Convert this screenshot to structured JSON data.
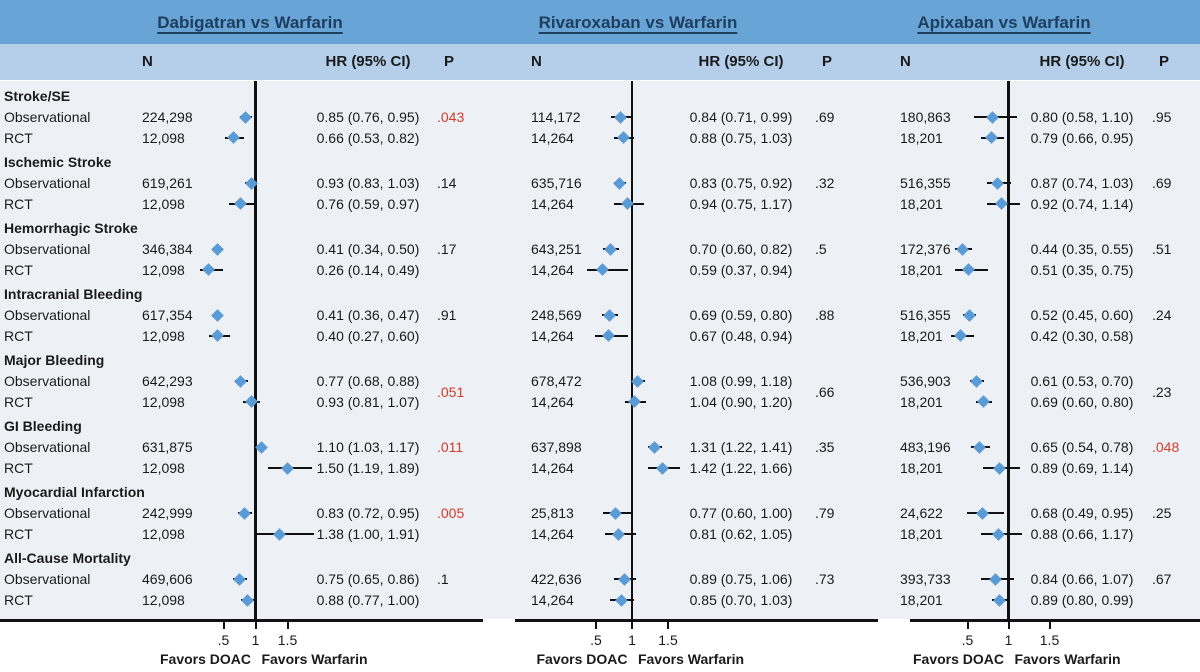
{
  "chart_data": {
    "type": "forest",
    "title": "",
    "x_scale": "linear",
    "xlim": [
      0.05,
      2.0
    ],
    "ref_line": 1,
    "x_ticks": [
      0.5,
      1,
      1.5
    ],
    "x_tick_labels": [
      ".5",
      "1",
      "1.5"
    ],
    "favors_left": "Favors DOAC",
    "favors_right": "Favors Warfarin",
    "columns": {
      "n": "N",
      "hr": "HR (95% CI)",
      "p": "P"
    },
    "design_labels": [
      "Observational",
      "RCT"
    ],
    "p_red_color": "#d13b2a",
    "marker_color": "#5b9bd5",
    "panels": [
      {
        "title": "Dabigatran vs Warfarin",
        "groups": [
          {
            "outcome": "Stroke/SE",
            "p": ".043",
            "p_red": true,
            "p_align": "first",
            "rows": [
              {
                "design": "Observational",
                "n": "224,298",
                "hr": 0.85,
                "lo": 0.76,
                "hi": 0.95,
                "hr_text": "0.85 (0.76, 0.95)"
              },
              {
                "design": "RCT",
                "n": "12,098",
                "hr": 0.66,
                "lo": 0.53,
                "hi": 0.82,
                "hr_text": "0.66 (0.53, 0.82)"
              }
            ]
          },
          {
            "outcome": "Ischemic Stroke",
            "p": ".14",
            "p_red": false,
            "p_align": "first",
            "rows": [
              {
                "design": "Observational",
                "n": "619,261",
                "hr": 0.93,
                "lo": 0.83,
                "hi": 1.03,
                "hr_text": "0.93 (0.83, 1.03)"
              },
              {
                "design": "RCT",
                "n": "12,098",
                "hr": 0.76,
                "lo": 0.59,
                "hi": 0.97,
                "hr_text": "0.76 (0.59, 0.97)"
              }
            ]
          },
          {
            "outcome": "Hemorrhagic Stroke",
            "p": ".17",
            "p_red": false,
            "p_align": "first",
            "rows": [
              {
                "design": "Observational",
                "n": "346,384",
                "hr": 0.41,
                "lo": 0.34,
                "hi": 0.5,
                "hr_text": "0.41 (0.34, 0.50)"
              },
              {
                "design": "RCT",
                "n": "12,098",
                "hr": 0.26,
                "lo": 0.14,
                "hi": 0.49,
                "hr_text": "0.26 (0.14, 0.49)"
              }
            ]
          },
          {
            "outcome": "Intracranial Bleeding",
            "p": ".91",
            "p_red": false,
            "p_align": "first",
            "rows": [
              {
                "design": "Observational",
                "n": "617,354",
                "hr": 0.41,
                "lo": 0.36,
                "hi": 0.47,
                "hr_text": "0.41 (0.36, 0.47)"
              },
              {
                "design": "RCT",
                "n": "12,098",
                "hr": 0.4,
                "lo": 0.27,
                "hi": 0.6,
                "hr_text": "0.40 (0.27, 0.60)"
              }
            ]
          },
          {
            "outcome": "Major Bleeding",
            "p": ".051",
            "p_red": true,
            "p_align": "middle",
            "rows": [
              {
                "design": "Observational",
                "n": "642,293",
                "hr": 0.77,
                "lo": 0.68,
                "hi": 0.88,
                "hr_text": "0.77 (0.68, 0.88)"
              },
              {
                "design": "RCT",
                "n": "12,098",
                "hr": 0.93,
                "lo": 0.81,
                "hi": 1.07,
                "hr_text": "0.93 (0.81, 1.07)"
              }
            ]
          },
          {
            "outcome": "GI Bleeding",
            "p": ".011",
            "p_red": true,
            "p_align": "first",
            "rows": [
              {
                "design": "Observational",
                "n": "631,875",
                "hr": 1.1,
                "lo": 1.03,
                "hi": 1.17,
                "hr_text": "1.10 (1.03, 1.17)"
              },
              {
                "design": "RCT",
                "n": "12,098",
                "hr": 1.5,
                "lo": 1.19,
                "hi": 1.89,
                "hr_text": "1.50 (1.19, 1.89)"
              }
            ]
          },
          {
            "outcome": "Myocardial Infarction",
            "p": ".005",
            "p_red": true,
            "p_align": "first",
            "rows": [
              {
                "design": "Observational",
                "n": "242,999",
                "hr": 0.83,
                "lo": 0.72,
                "hi": 0.95,
                "hr_text": "0.83 (0.72, 0.95)"
              },
              {
                "design": "RCT",
                "n": "12,098",
                "hr": 1.38,
                "lo": 1.0,
                "hi": 1.91,
                "hr_text": "1.38 (1.00, 1.91)"
              }
            ]
          },
          {
            "outcome": "All-Cause Mortality",
            "p": ".1",
            "p_red": false,
            "p_align": "first",
            "rows": [
              {
                "design": "Observational",
                "n": "469,606",
                "hr": 0.75,
                "lo": 0.65,
                "hi": 0.86,
                "hr_text": "0.75 (0.65, 0.86)"
              },
              {
                "design": "RCT",
                "n": "12,098",
                "hr": 0.88,
                "lo": 0.77,
                "hi": 1.0,
                "hr_text": "0.88 (0.77, 1.00)"
              }
            ]
          }
        ]
      },
      {
        "title": "Rivaroxaban vs Warfarin",
        "groups": [
          {
            "outcome": "Stroke/SE",
            "p": ".69",
            "p_red": false,
            "p_align": "first",
            "rows": [
              {
                "design": "Observational",
                "n": "114,172",
                "hr": 0.84,
                "lo": 0.71,
                "hi": 0.99,
                "hr_text": "0.84 (0.71, 0.99)"
              },
              {
                "design": "RCT",
                "n": "14,264",
                "hr": 0.88,
                "lo": 0.75,
                "hi": 1.03,
                "hr_text": "0.88 (0.75, 1.03)"
              }
            ]
          },
          {
            "outcome": "Ischemic Stroke",
            "p": ".32",
            "p_red": false,
            "p_align": "first",
            "rows": [
              {
                "design": "Observational",
                "n": "635,716",
                "hr": 0.83,
                "lo": 0.75,
                "hi": 0.92,
                "hr_text": "0.83 (0.75, 0.92)"
              },
              {
                "design": "RCT",
                "n": "14,264",
                "hr": 0.94,
                "lo": 0.75,
                "hi": 1.17,
                "hr_text": "0.94 (0.75, 1.17)"
              }
            ]
          },
          {
            "outcome": "Hemorrhagic Stroke",
            "p": ".5",
            "p_red": false,
            "p_align": "first",
            "rows": [
              {
                "design": "Observational",
                "n": "643,251",
                "hr": 0.7,
                "lo": 0.6,
                "hi": 0.82,
                "hr_text": "0.70 (0.60, 0.82)"
              },
              {
                "design": "RCT",
                "n": "14,264",
                "hr": 0.59,
                "lo": 0.37,
                "hi": 0.94,
                "hr_text": "0.59 (0.37, 0.94)"
              }
            ]
          },
          {
            "outcome": "Intracranial Bleeding",
            "p": ".88",
            "p_red": false,
            "p_align": "first",
            "rows": [
              {
                "design": "Observational",
                "n": "248,569",
                "hr": 0.69,
                "lo": 0.59,
                "hi": 0.8,
                "hr_text": "0.69 (0.59, 0.80)"
              },
              {
                "design": "RCT",
                "n": "14,264",
                "hr": 0.67,
                "lo": 0.48,
                "hi": 0.94,
                "hr_text": "0.67 (0.48, 0.94)"
              }
            ]
          },
          {
            "outcome": "Major Bleeding",
            "p": ".66",
            "p_red": false,
            "p_align": "middle",
            "rows": [
              {
                "design": "Observational",
                "n": "678,472",
                "hr": 1.08,
                "lo": 0.99,
                "hi": 1.18,
                "hr_text": "1.08 (0.99, 1.18)"
              },
              {
                "design": "RCT",
                "n": "14,264",
                "hr": 1.04,
                "lo": 0.9,
                "hi": 1.2,
                "hr_text": "1.04 (0.90, 1.20)"
              }
            ]
          },
          {
            "outcome": "GI Bleeding",
            "p": ".35",
            "p_red": false,
            "p_align": "first",
            "rows": [
              {
                "design": "Observational",
                "n": "637,898",
                "hr": 1.31,
                "lo": 1.22,
                "hi": 1.41,
                "hr_text": "1.31 (1.22, 1.41)"
              },
              {
                "design": "RCT",
                "n": "14,264",
                "hr": 1.42,
                "lo": 1.22,
                "hi": 1.66,
                "hr_text": "1.42 (1.22, 1.66)"
              }
            ]
          },
          {
            "outcome": "Myocardial Infarction",
            "p": ".79",
            "p_red": false,
            "p_align": "first",
            "rows": [
              {
                "design": "Observational",
                "n": "25,813",
                "hr": 0.77,
                "lo": 0.6,
                "hi": 1.0,
                "hr_text": "0.77 (0.60, 1.00)"
              },
              {
                "design": "RCT",
                "n": "14,264",
                "hr": 0.81,
                "lo": 0.62,
                "hi": 1.05,
                "hr_text": "0.81 (0.62, 1.05)"
              }
            ]
          },
          {
            "outcome": "All-Cause Mortality",
            "p": ".73",
            "p_red": false,
            "p_align": "first",
            "rows": [
              {
                "design": "Observational",
                "n": "422,636",
                "hr": 0.89,
                "lo": 0.75,
                "hi": 1.06,
                "hr_text": "0.89 (0.75, 1.06)"
              },
              {
                "design": "RCT",
                "n": "14,264",
                "hr": 0.85,
                "lo": 0.7,
                "hi": 1.03,
                "hr_text": "0.85 (0.70, 1.03)"
              }
            ]
          }
        ]
      },
      {
        "title": "Apixaban vs Warfarin",
        "groups": [
          {
            "outcome": "Stroke/SE",
            "p": ".95",
            "p_red": false,
            "p_align": "first",
            "rows": [
              {
                "design": "Observational",
                "n": "180,863",
                "hr": 0.8,
                "lo": 0.58,
                "hi": 1.1,
                "hr_text": "0.80 (0.58, 1.10)"
              },
              {
                "design": "RCT",
                "n": "18,201",
                "hr": 0.79,
                "lo": 0.66,
                "hi": 0.95,
                "hr_text": "0.79 (0.66, 0.95)"
              }
            ]
          },
          {
            "outcome": "Ischemic Stroke",
            "p": ".69",
            "p_red": false,
            "p_align": "first",
            "rows": [
              {
                "design": "Observational",
                "n": "516,355",
                "hr": 0.87,
                "lo": 0.74,
                "hi": 1.03,
                "hr_text": "0.87 (0.74, 1.03)"
              },
              {
                "design": "RCT",
                "n": "18,201",
                "hr": 0.92,
                "lo": 0.74,
                "hi": 1.14,
                "hr_text": "0.92 (0.74, 1.14)"
              }
            ]
          },
          {
            "outcome": "Hemorrhagic Stroke",
            "p": ".51",
            "p_red": false,
            "p_align": "first",
            "rows": [
              {
                "design": "Observational",
                "n": "172,376",
                "hr": 0.44,
                "lo": 0.35,
                "hi": 0.55,
                "hr_text": "0.44 (0.35, 0.55)"
              },
              {
                "design": "RCT",
                "n": "18,201",
                "hr": 0.51,
                "lo": 0.35,
                "hi": 0.75,
                "hr_text": "0.51 (0.35, 0.75)"
              }
            ]
          },
          {
            "outcome": "Intracranial Bleeding",
            "p": ".24",
            "p_red": false,
            "p_align": "first",
            "rows": [
              {
                "design": "Observational",
                "n": "516,355",
                "hr": 0.52,
                "lo": 0.45,
                "hi": 0.6,
                "hr_text": "0.52 (0.45, 0.60)"
              },
              {
                "design": "RCT",
                "n": "18,201",
                "hr": 0.42,
                "lo": 0.3,
                "hi": 0.58,
                "hr_text": "0.42 (0.30, 0.58)"
              }
            ]
          },
          {
            "outcome": "Major Bleeding",
            "p": ".23",
            "p_red": false,
            "p_align": "middle",
            "rows": [
              {
                "design": "Observational",
                "n": "536,903",
                "hr": 0.61,
                "lo": 0.53,
                "hi": 0.7,
                "hr_text": "0.61 (0.53, 0.70)"
              },
              {
                "design": "RCT",
                "n": "18,201",
                "hr": 0.69,
                "lo": 0.6,
                "hi": 0.8,
                "hr_text": "0.69 (0.60, 0.80)"
              }
            ]
          },
          {
            "outcome": "GI Bleeding",
            "p": ".048",
            "p_red": true,
            "p_align": "first",
            "rows": [
              {
                "design": "Observational",
                "n": "483,196",
                "hr": 0.65,
                "lo": 0.54,
                "hi": 0.78,
                "hr_text": "0.65 (0.54, 0.78)"
              },
              {
                "design": "RCT",
                "n": "18,201",
                "hr": 0.89,
                "lo": 0.69,
                "hi": 1.14,
                "hr_text": "0.89 (0.69, 1.14)"
              }
            ]
          },
          {
            "outcome": "Myocardial Infarction",
            "p": ".25",
            "p_red": false,
            "p_align": "first",
            "rows": [
              {
                "design": "Observational",
                "n": "24,622",
                "hr": 0.68,
                "lo": 0.49,
                "hi": 0.95,
                "hr_text": "0.68 (0.49, 0.95)"
              },
              {
                "design": "RCT",
                "n": "18,201",
                "hr": 0.88,
                "lo": 0.66,
                "hi": 1.17,
                "hr_text": "0.88 (0.66, 1.17)"
              }
            ]
          },
          {
            "outcome": "All-Cause Mortality",
            "p": ".67",
            "p_red": false,
            "p_align": "first",
            "rows": [
              {
                "design": "Observational",
                "n": "393,733",
                "hr": 0.84,
                "lo": 0.66,
                "hi": 1.07,
                "hr_text": "0.84 (0.66, 1.07)"
              },
              {
                "design": "RCT",
                "n": "18,201",
                "hr": 0.89,
                "lo": 0.8,
                "hi": 0.99,
                "hr_text": "0.89 (0.80, 0.99)"
              }
            ]
          }
        ]
      }
    ]
  }
}
